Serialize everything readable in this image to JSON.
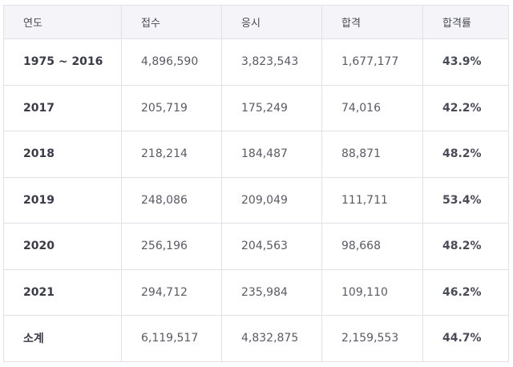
{
  "table": {
    "headers": [
      "연도",
      "접수",
      "응시",
      "합격",
      "합격률"
    ],
    "rows": [
      {
        "year": "1975 ~ 2016",
        "applied": "4,896,590",
        "tested": "3,823,543",
        "passed": "1,677,177",
        "rate": "43.9%"
      },
      {
        "year": "2017",
        "applied": "205,719",
        "tested": "175,249",
        "passed": "74,016",
        "rate": "42.2%"
      },
      {
        "year": "2018",
        "applied": "218,214",
        "tested": "184,487",
        "passed": "88,871",
        "rate": "48.2%"
      },
      {
        "year": "2019",
        "applied": "248,086",
        "tested": "209,049",
        "passed": "111,711",
        "rate": "53.4%"
      },
      {
        "year": "2020",
        "applied": "256,196",
        "tested": "204,563",
        "passed": "98,668",
        "rate": "48.2%"
      },
      {
        "year": "2021",
        "applied": "294,712",
        "tested": "235,984",
        "passed": "109,110",
        "rate": "46.2%"
      },
      {
        "year": "소계",
        "applied": "6,119,517",
        "tested": "4,832,875",
        "passed": "2,159,553",
        "rate": "44.7%"
      }
    ]
  }
}
